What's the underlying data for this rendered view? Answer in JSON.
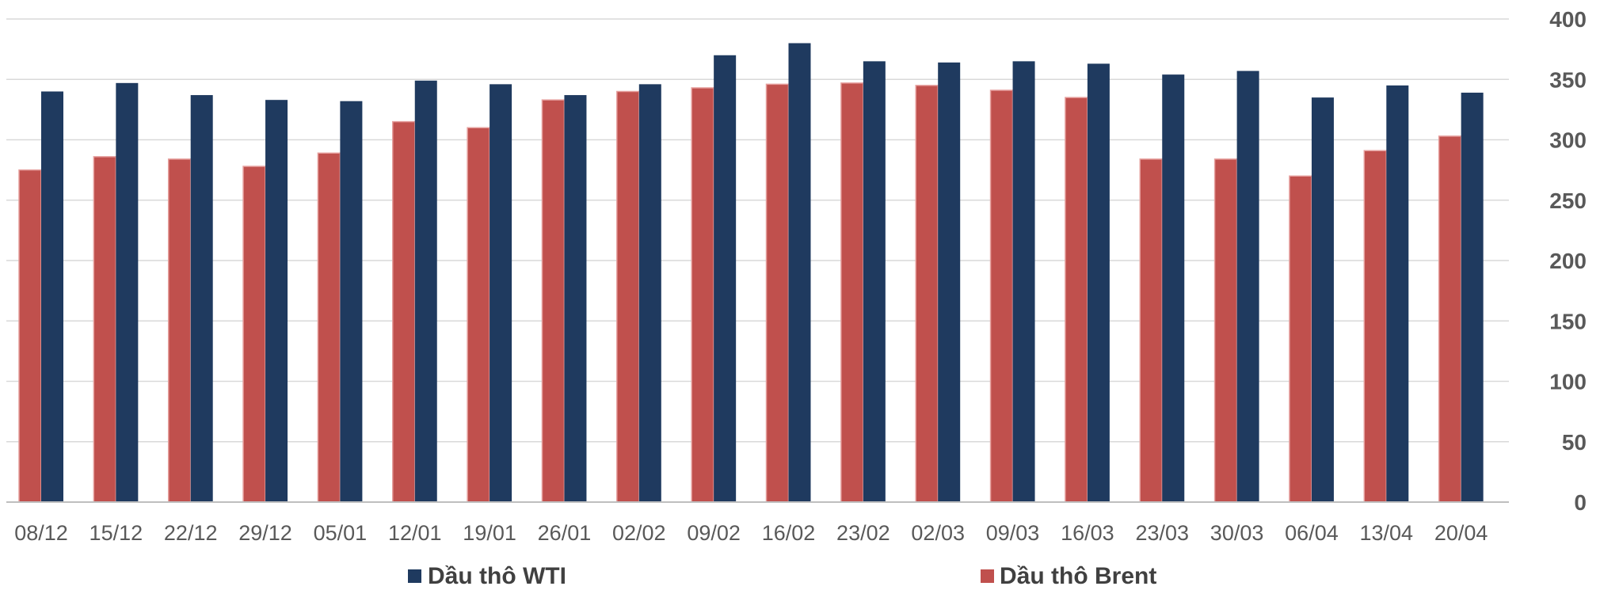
{
  "chart_data": {
    "type": "bar",
    "title": "",
    "xlabel": "",
    "ylabel": "",
    "categories": [
      "08/12",
      "15/12",
      "22/12",
      "29/12",
      "05/01",
      "12/01",
      "19/01",
      "26/01",
      "02/02",
      "09/02",
      "16/02",
      "23/02",
      "02/03",
      "09/03",
      "16/03",
      "23/03",
      "30/03",
      "06/04",
      "13/04",
      "20/04"
    ],
    "series": [
      {
        "name": "Dầu thô Brent",
        "color": "#C0504D",
        "values": [
          275,
          286,
          284,
          278,
          289,
          315,
          310,
          333,
          340,
          343,
          346,
          347,
          345,
          341,
          335,
          284,
          284,
          270,
          291,
          303
        ]
      },
      {
        "name": "Dầu thô WTI",
        "color": "#1F3A5F",
        "values": [
          340,
          347,
          337,
          333,
          332,
          349,
          346,
          337,
          346,
          370,
          380,
          365,
          364,
          365,
          363,
          354,
          357,
          335,
          345,
          339
        ]
      }
    ],
    "ylim": [
      0,
      400
    ],
    "yticks": [
      0,
      50,
      100,
      150,
      200,
      250,
      300,
      350,
      400
    ],
    "grid": true,
    "y_axis_position": "right",
    "legend": {
      "placement": "bottom",
      "order": [
        "Dầu thô WTI",
        "Dầu thô Brent"
      ]
    }
  }
}
